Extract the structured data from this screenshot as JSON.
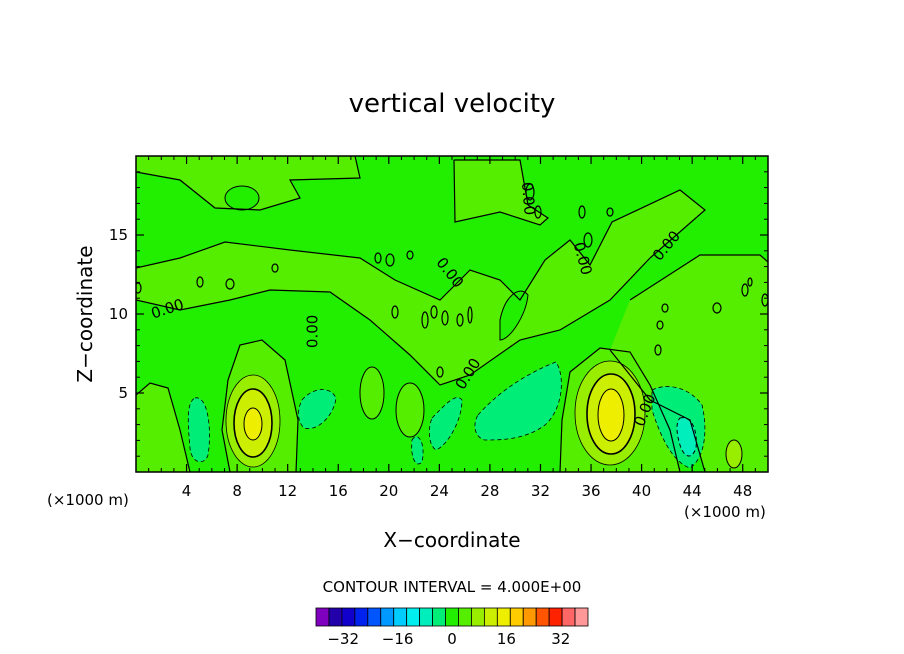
{
  "chart_data": {
    "type": "contour",
    "title": "vertical velocity",
    "xlabel": "X−coordinate",
    "ylabel": "Z−coordinate",
    "x_unit_left": "(×1000 m)",
    "x_unit_right": "(×1000 m)",
    "xlim": [
      0,
      50
    ],
    "ylim": [
      0,
      20
    ],
    "xticks": [
      4,
      8,
      12,
      16,
      20,
      24,
      28,
      32,
      36,
      40,
      44,
      48
    ],
    "yticks": [
      5,
      10,
      15
    ],
    "contour_interval_text": "CONTOUR INTERVAL = 4.000E+00",
    "contour_labels": [
      {
        "text": "0.00",
        "x": 2.5,
        "z": 10.3,
        "angle": -18
      },
      {
        "text": "0.00",
        "x": 14.0,
        "z": 8.9,
        "angle": -90
      },
      {
        "text": "0.00",
        "x": 24.8,
        "z": 12.6,
        "angle": 52
      },
      {
        "text": "0.00",
        "x": 26.3,
        "z": 6.2,
        "angle": -58
      },
      {
        "text": "0.00",
        "x": 31.0,
        "z": 17.3,
        "angle": 85
      },
      {
        "text": "0.00",
        "x": 35.3,
        "z": 13.5,
        "angle": 75
      },
      {
        "text": "0.00",
        "x": 40.3,
        "z": 3.9,
        "angle": -68
      },
      {
        "text": "0.00",
        "x": 42.0,
        "z": 14.3,
        "angle": -50
      }
    ],
    "features": [
      {
        "kind": "updraft",
        "x": 9.2,
        "z": 3.1,
        "max_level": 16
      },
      {
        "kind": "updraft",
        "x": 37.5,
        "z": 3.5,
        "max_level": 16
      },
      {
        "kind": "downdraft",
        "x": 5.0,
        "z": 3.0,
        "min_level": -4
      },
      {
        "kind": "downdraft",
        "x": 14.3,
        "z": 4.0,
        "min_level": -4
      },
      {
        "kind": "downdraft",
        "x": 23.5,
        "z": 3.0,
        "min_level": -4
      },
      {
        "kind": "downdraft",
        "x": 31.0,
        "z": 3.6,
        "min_level": -4
      },
      {
        "kind": "downdraft",
        "x": 43.3,
        "z": 3.0,
        "min_level": -8
      }
    ],
    "colorbar": {
      "levels": [
        -40,
        -36,
        -32,
        -28,
        -24,
        -20,
        -16,
        -12,
        -8,
        -4,
        0,
        4,
        8,
        12,
        16,
        20,
        24,
        28,
        32,
        36,
        40
      ],
      "tick_labels": [
        "−32",
        "−16",
        "0",
        "16",
        "32"
      ],
      "tick_values": [
        -32,
        -16,
        0,
        16,
        32
      ],
      "colors": [
        "#7f00bf",
        "#2200aa",
        "#1100cc",
        "#0022ee",
        "#0055ff",
        "#0099ff",
        "#00ccff",
        "#00eeee",
        "#00eebb",
        "#00ee77",
        "#22ee00",
        "#55ee00",
        "#99ee00",
        "#ccee00",
        "#eeee00",
        "#ffcc00",
        "#ff9900",
        "#ff5500",
        "#ff2200",
        "#ff6666",
        "#ff9999"
      ]
    }
  }
}
